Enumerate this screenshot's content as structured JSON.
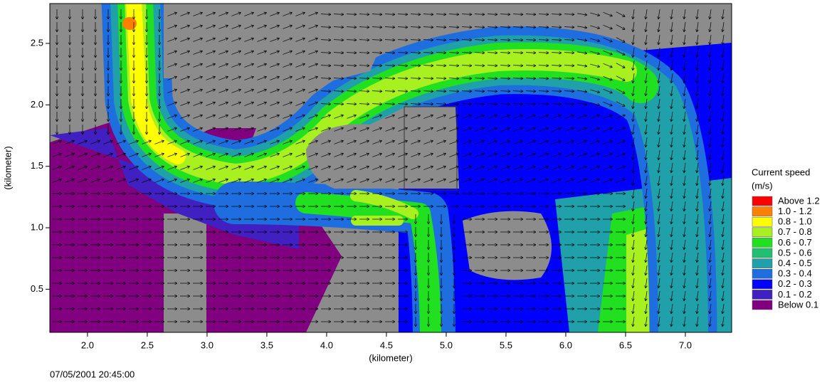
{
  "chart_data": {
    "type": "contour",
    "x_label": "(kilometer)",
    "y_label": "(kilometer)",
    "xlim": [
      1.685,
      7.387
    ],
    "ylim": [
      0.149,
      2.824
    ],
    "xticks": [
      {
        "value": 2,
        "label": "2.0"
      },
      2.5,
      {
        "value": 3,
        "label": "3.0"
      },
      3.5,
      {
        "value": 4,
        "label": "4.0"
      },
      4.5,
      {
        "value": 5,
        "label": "5.0"
      },
      5.5,
      {
        "value": 6,
        "label": "6.0"
      },
      6.5,
      {
        "value": 7,
        "label": "7.0"
      }
    ],
    "yticks": [
      0.5,
      {
        "value": 1,
        "label": "1.0"
      },
      1.5,
      {
        "value": 2,
        "label": "2.0"
      },
      2.5
    ],
    "legend": {
      "title": "Current speed",
      "unit": "(m/s)",
      "entries": [
        {
          "label": "Above 1.2",
          "color": "#ff0000"
        },
        {
          "label": "1.0 - 1.2",
          "color": "#ff8000"
        },
        {
          "label": "0.8 - 1.0",
          "color": "#ffff00"
        },
        {
          "label": "0.7 - 0.8",
          "color": "#a8f020"
        },
        {
          "label": "0.6 - 0.7",
          "color": "#20e020"
        },
        {
          "label": "0.5 - 0.6",
          "color": "#20c070"
        },
        {
          "label": "0.4 - 0.5",
          "color": "#20a0a8"
        },
        {
          "label": "0.3 - 0.4",
          "color": "#1e6ee0"
        },
        {
          "label": "0.2 - 0.3",
          "color": "#0000ff"
        },
        {
          "label": "0.1 - 0.2",
          "color": "#4020c0"
        },
        {
          "label": "Below 0.1",
          "color": "#800080"
        }
      ]
    },
    "timestamp": "07/05/2001 20:45:00"
  }
}
